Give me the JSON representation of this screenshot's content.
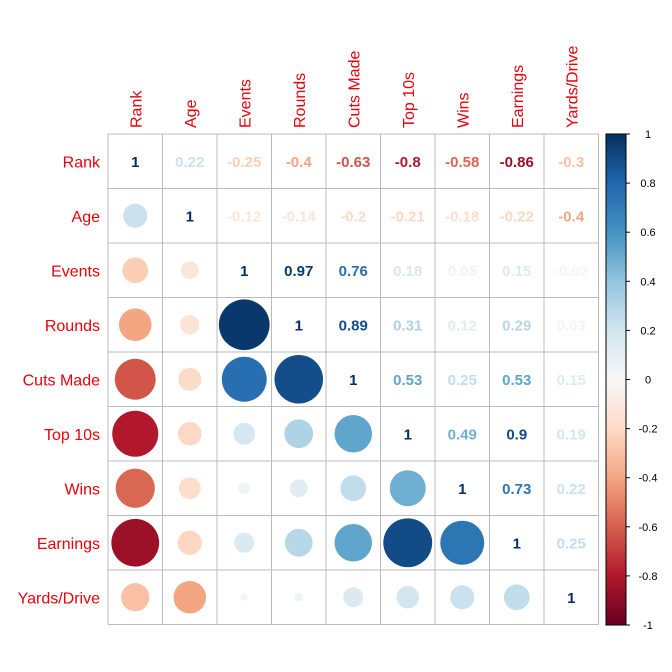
{
  "chart_data": {
    "type": "heatmap",
    "title": "",
    "variables": [
      "Rank",
      "Age",
      "Events",
      "Rounds",
      "Cuts Made",
      "Top 10s",
      "Wins",
      "Earnings",
      "Yards/Drive"
    ],
    "matrix": [
      [
        1,
        0.22,
        -0.25,
        -0.4,
        -0.63,
        -0.8,
        -0.58,
        -0.86,
        -0.3
      ],
      [
        0.22,
        1,
        -0.12,
        -0.14,
        -0.2,
        -0.21,
        -0.18,
        -0.22,
        -0.4
      ],
      [
        -0.25,
        -0.12,
        1,
        0.97,
        0.76,
        0.18,
        0.05,
        0.15,
        -0.02
      ],
      [
        -0.4,
        -0.14,
        0.97,
        1,
        0.89,
        0.31,
        0.12,
        0.29,
        0.03
      ],
      [
        -0.63,
        -0.2,
        0.76,
        0.89,
        1,
        0.53,
        0.25,
        0.53,
        0.15
      ],
      [
        -0.8,
        -0.21,
        0.18,
        0.31,
        0.53,
        1,
        0.49,
        0.9,
        0.19
      ],
      [
        -0.58,
        -0.18,
        0.05,
        0.12,
        0.25,
        0.49,
        1,
        0.73,
        0.22
      ],
      [
        -0.86,
        -0.22,
        0.15,
        0.29,
        0.53,
        0.9,
        0.73,
        1,
        0.25
      ],
      [
        -0.3,
        -0.4,
        -0.02,
        0.03,
        0.15,
        0.19,
        0.22,
        0.25,
        1
      ]
    ],
    "upper_labels": [
      "1",
      "0.22",
      "-0.25",
      "-0.4",
      "-0.63",
      "-0.8",
      "-0.58",
      "-0.86",
      "-0.3",
      "1",
      "-0.12",
      "-0.14",
      "-0.2",
      "-0.21",
      "-0.18",
      "-0.22",
      "-0.4",
      "1",
      "0.97",
      "0.76",
      "0.18",
      "0.05",
      "0.15",
      "-0.02",
      "1",
      "0.89",
      "0.31",
      "0.12",
      "0.29",
      "0.03",
      "1",
      "0.53",
      "0.25",
      "0.53",
      "0.15",
      "1",
      "0.49",
      "0.9",
      "0.19",
      "1",
      "0.73",
      "0.22",
      "1",
      "0.25",
      "1"
    ],
    "colorbar": {
      "range": [
        -1,
        1
      ],
      "ticks": [
        "1",
        "0.8",
        "0.6",
        "0.4",
        "0.2",
        "0",
        "-0.2",
        "-0.4",
        "-0.6",
        "-0.8",
        "-1"
      ]
    },
    "colors": {
      "negative_end": "#67001f",
      "neutral": "#f7f7f7",
      "positive_end": "#053061",
      "label_text": "#e8000b",
      "grid": "#bbbbbb"
    }
  }
}
